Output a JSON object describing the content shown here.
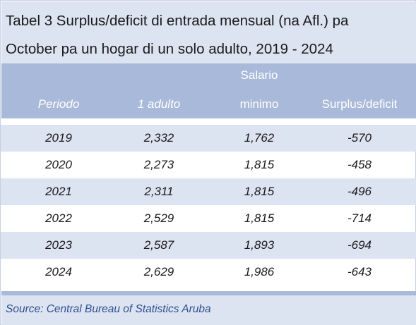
{
  "title": {
    "line1": "Tabel 3 Surplus/deficit di entrada mensual (na Afl.) pa",
    "line2": "October pa un hogar di un solo adulto, 2019 - 2024"
  },
  "header": {
    "periodo": "Periodo",
    "adulto": "1 adulto",
    "salario_top": "Salario",
    "salario_bottom": "minimo",
    "surplus": "Surplus/deficit"
  },
  "rows": [
    {
      "periodo": "2019",
      "adulto": "2,332",
      "minimo": "1,762",
      "surplus": "-570"
    },
    {
      "periodo": "2020",
      "adulto": "2,273",
      "minimo": "1,815",
      "surplus": "-458"
    },
    {
      "periodo": "2021",
      "adulto": "2,311",
      "minimo": "1,815",
      "surplus": "-496"
    },
    {
      "periodo": "2022",
      "adulto": "2,529",
      "minimo": "1,815",
      "surplus": "-714"
    },
    {
      "periodo": "2023",
      "adulto": "2,587",
      "minimo": "1,893",
      "surplus": "-694"
    },
    {
      "periodo": "2024",
      "adulto": "2,629",
      "minimo": "1,986",
      "surplus": "-643"
    }
  ],
  "source": "Source: Central Bureau of Statistics Aruba",
  "colors": {
    "title_bg": "#dce3f1",
    "header_bg": "#a9b9d9",
    "row_shade": "#dce3f1",
    "source_text": "#2f4f8f"
  }
}
